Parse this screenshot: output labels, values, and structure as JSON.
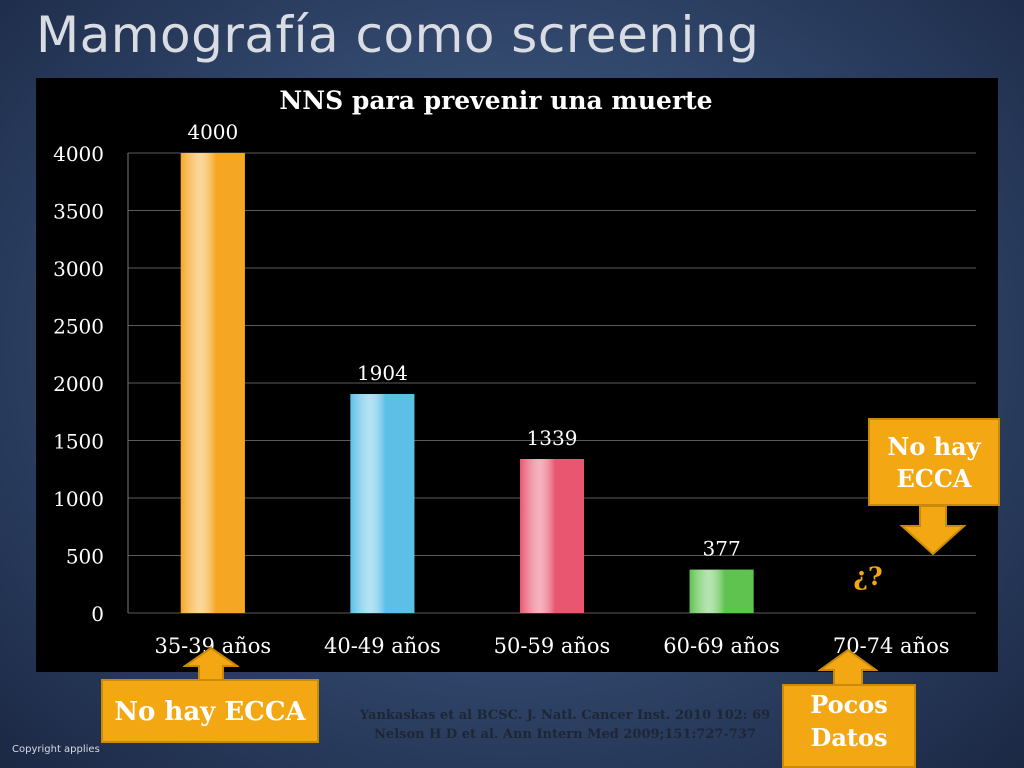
{
  "slide": {
    "title": "Mamografía como screening",
    "citation_line1": "Yankaskas et al BCSC. J. Natl. Cancer Inst. 2010 102: 69",
    "citation_line2": "Nelson H D et al. Ann Intern Med 2009;151:727-737",
    "copyright": "Copyright applies"
  },
  "callouts": {
    "left": "No hay ECCA",
    "right_line1": "No hay",
    "right_line2": "ECCA",
    "bottom_line1": "Pocos",
    "bottom_line2": "Datos",
    "question_mark": "¿?"
  },
  "colors": {
    "callout": "#f3a712",
    "question_mark": "#f3a712"
  },
  "chart_data": {
    "type": "bar",
    "title": "NNS para prevenir una muerte",
    "categories": [
      "35-39 años",
      "40-49 años",
      "50-59 años",
      "60-69 años",
      "70-74 años"
    ],
    "values": [
      4000,
      1904,
      1339,
      377,
      null
    ],
    "data_labels": [
      "4000",
      "1904",
      "1339",
      "377",
      ""
    ],
    "ylim": [
      0,
      4000
    ],
    "yticks": [
      0,
      500,
      1000,
      1500,
      2000,
      2500,
      3000,
      3500,
      4000
    ],
    "grid": true,
    "bar_colors": [
      "#f5a623",
      "#5bbfe6",
      "#e8566f",
      "#5fc34f",
      "#999999"
    ],
    "xlabel": "",
    "ylabel": ""
  }
}
